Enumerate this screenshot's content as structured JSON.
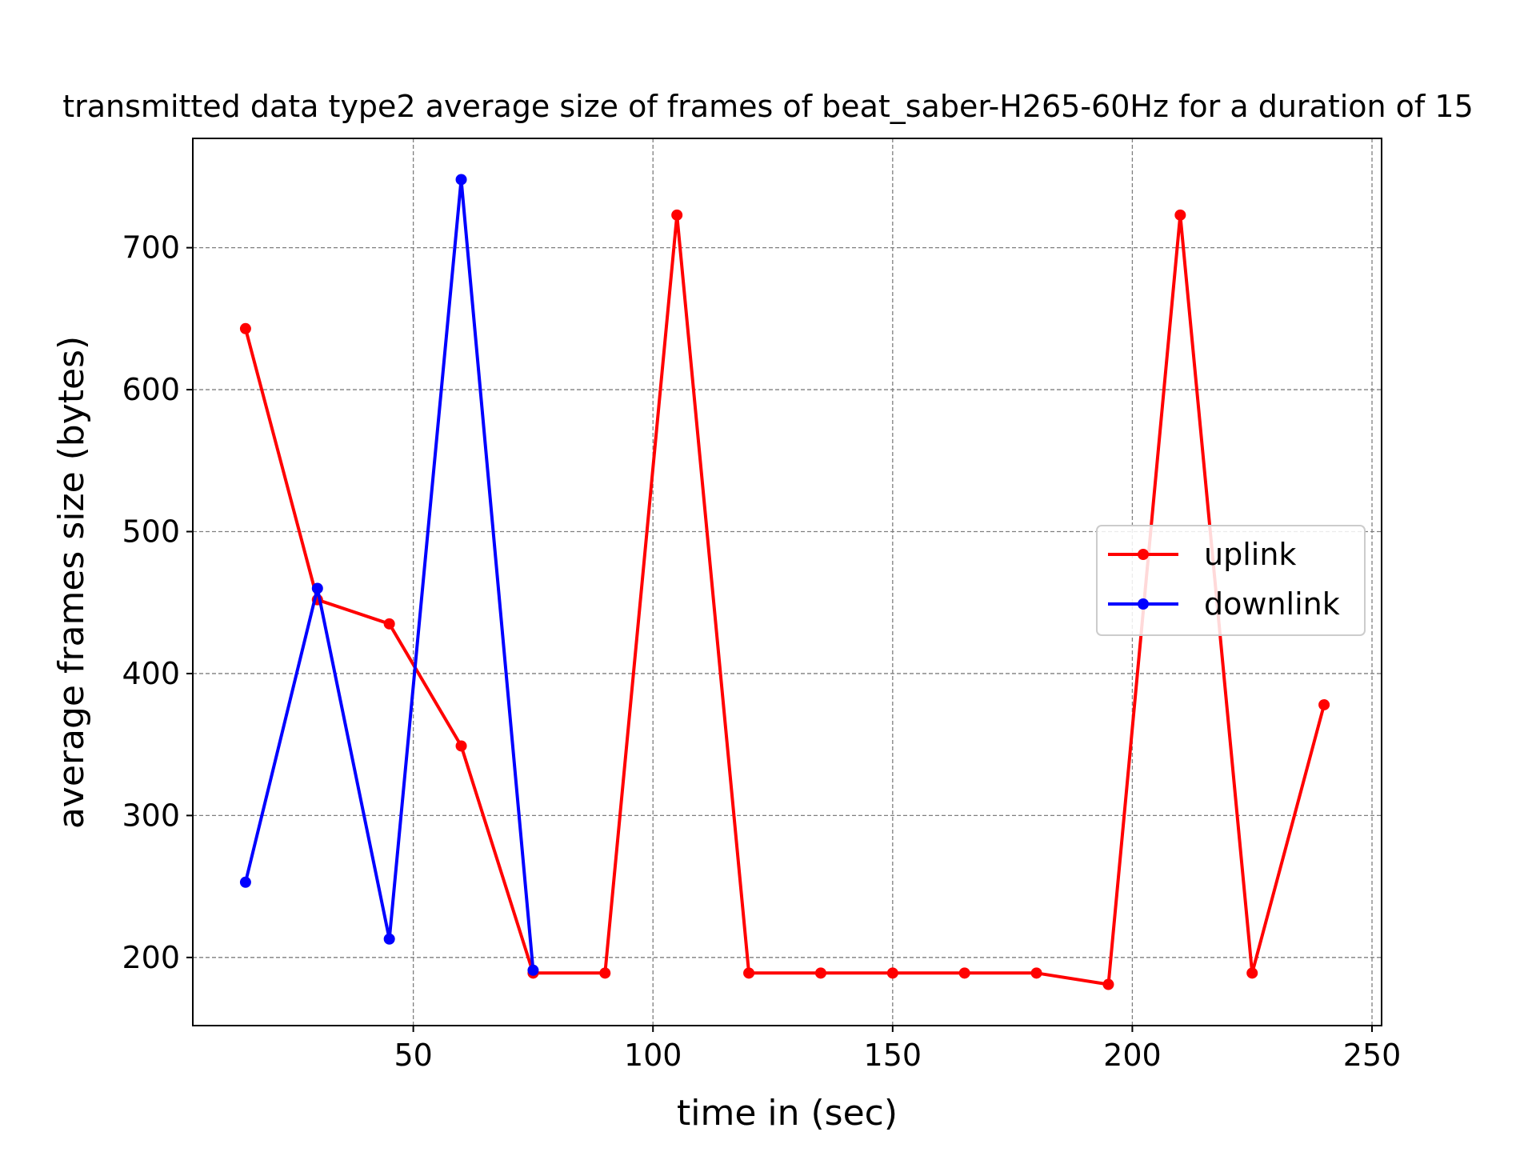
{
  "chart_data": {
    "type": "line",
    "title": "transmitted data type2 average size of frames of beat_saber-H265-60Hz for a duration of 15",
    "xlabel": "time in (sec)",
    "ylabel": "average frames size (bytes)",
    "xlim": [
      4,
      252
    ],
    "ylim": [
      152,
      777
    ],
    "xticks": [
      50,
      100,
      150,
      200,
      250
    ],
    "yticks": [
      200,
      300,
      400,
      500,
      600,
      700
    ],
    "grid": true,
    "legend_position": "center-right",
    "series": [
      {
        "name": "uplink",
        "color": "#ff0000",
        "x": [
          15,
          30,
          45,
          60,
          75,
          90,
          105,
          120,
          135,
          150,
          165,
          180,
          195,
          210,
          225,
          240
        ],
        "values": [
          643,
          452,
          435,
          349,
          189,
          189,
          723,
          189,
          189,
          189,
          189,
          189,
          181,
          723,
          189,
          378
        ]
      },
      {
        "name": "downlink",
        "color": "#0000ff",
        "x": [
          15,
          30,
          45,
          60,
          75
        ],
        "values": [
          253,
          460,
          213,
          748,
          191
        ]
      }
    ]
  }
}
